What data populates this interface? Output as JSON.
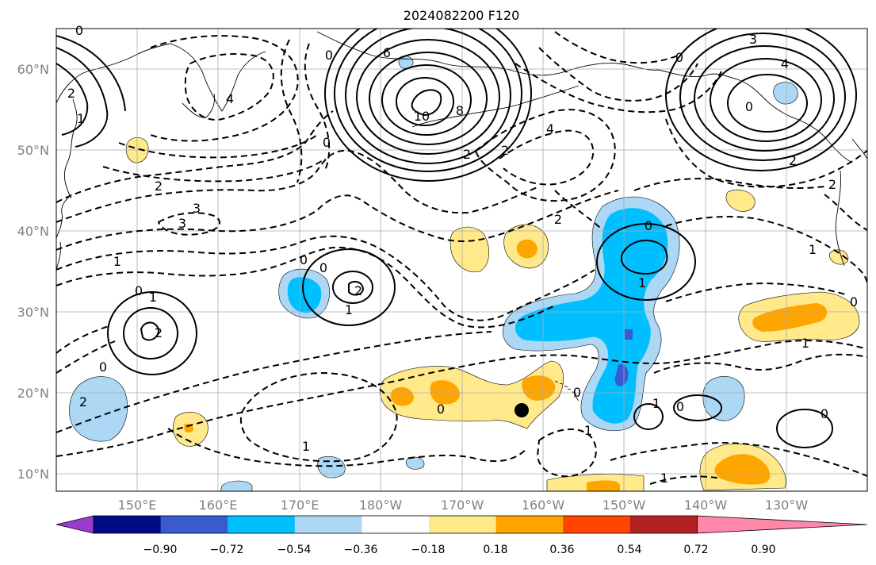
{
  "title": "2024082200 F120",
  "latitude_labels": [
    "60°N",
    "50°N",
    "40°N",
    "30°N",
    "20°N",
    "10°N"
  ],
  "longitude_labels": [
    "150°E",
    "160°E",
    "170°E",
    "180°W",
    "170°W",
    "160°W",
    "150°W",
    "140°W",
    "130°W"
  ],
  "colorbar": {
    "tick_labels": [
      "−0.90",
      "−0.72",
      "−0.54",
      "−0.36",
      "−0.18",
      "0.18",
      "0.36",
      "0.54",
      "0.72",
      "0.90"
    ],
    "colors": [
      "#9a3bd0",
      "#000b86",
      "#3a5bd0",
      "#00bfff",
      "#add8f5",
      "#ffffff",
      "#ffe98a",
      "#ffa500",
      "#ff4500",
      "#b22222",
      "#ff88aa"
    ]
  },
  "contour_labels": [
    {
      "text": "0"
    },
    {
      "text": "2"
    },
    {
      "text": "1"
    },
    {
      "text": "4"
    },
    {
      "text": "0"
    },
    {
      "text": "6"
    },
    {
      "text": "10"
    },
    {
      "text": "8"
    },
    {
      "text": "0"
    },
    {
      "text": "4"
    },
    {
      "text": "2"
    },
    {
      "text": "2"
    },
    {
      "text": "2"
    },
    {
      "text": "3"
    },
    {
      "text": "3"
    },
    {
      "text": "4"
    },
    {
      "text": "0"
    },
    {
      "text": "2"
    },
    {
      "text": "0"
    },
    {
      "text": "2"
    },
    {
      "text": "3"
    },
    {
      "text": "2"
    },
    {
      "text": "1"
    },
    {
      "text": "0"
    },
    {
      "text": "0"
    },
    {
      "text": "2"
    },
    {
      "text": "1"
    },
    {
      "text": "0"
    },
    {
      "text": "1"
    },
    {
      "text": "2"
    },
    {
      "text": "1"
    },
    {
      "text": "0"
    },
    {
      "text": "1"
    },
    {
      "text": "0"
    },
    {
      "text": "1"
    },
    {
      "text": "0"
    },
    {
      "text": "0"
    },
    {
      "text": "1"
    },
    {
      "text": "1"
    },
    {
      "text": "0"
    },
    {
      "text": "1"
    },
    {
      "text": "1"
    },
    {
      "text": "0"
    },
    {
      "text": "2"
    },
    {
      "text": "0"
    }
  ],
  "marker": {
    "type": "point",
    "color": "#000000"
  }
}
